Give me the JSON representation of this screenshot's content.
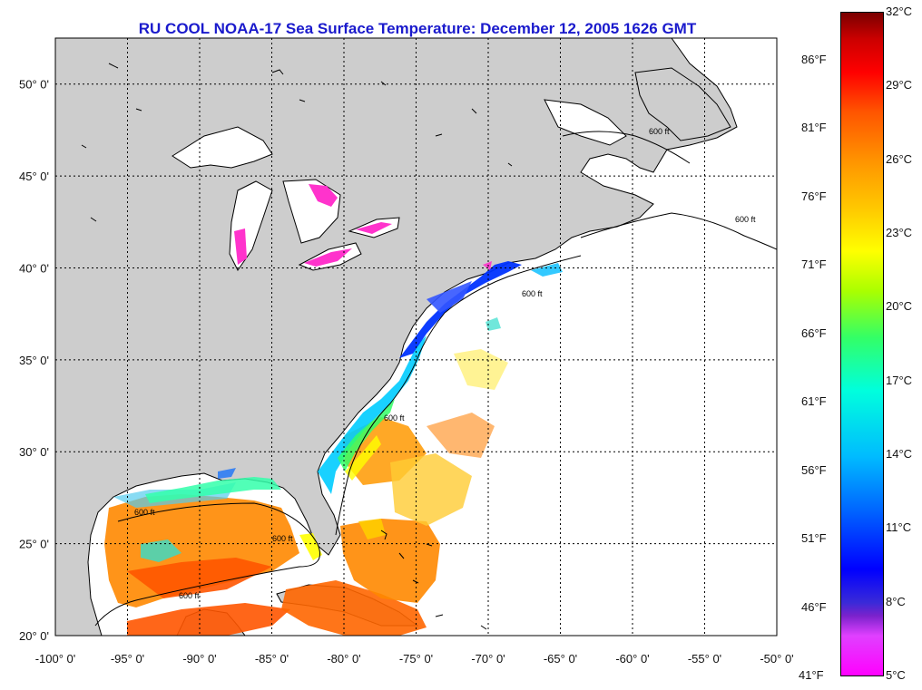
{
  "title": "RU COOL  NOAA-17  Sea Surface Temperature:  December 12, 2005 1626 GMT",
  "map": {
    "lon_range": [
      -100,
      -50
    ],
    "lat_range": [
      20,
      52.5
    ],
    "grid": true,
    "lon_ticks": [
      "-100° 0'",
      "-95° 0'",
      "-90° 0'",
      "-85° 0'",
      "-80° 0'",
      "-75° 0'",
      "-70° 0'",
      "-65° 0'",
      "-60° 0'",
      "-55° 0'",
      "-50° 0'"
    ],
    "lat_ticks": [
      "50° 0'",
      "45° 0'",
      "40° 0'",
      "35° 0'",
      "30° 0'",
      "25° 0'",
      "20° 0'"
    ],
    "contour_label": "600 ft",
    "land_color": "#cdcdcd",
    "ocean_no_data_color": "#ffffff"
  },
  "colorbar": {
    "fahrenheit": [
      "86°F",
      "81°F",
      "76°F",
      "71°F",
      "66°F",
      "61°F",
      "56°F",
      "51°F",
      "46°F",
      "41°F"
    ],
    "celsius": [
      "32°C",
      "29°C",
      "26°C",
      "23°C",
      "20°C",
      "17°C",
      "14°C",
      "11°C",
      "8°C",
      "5°C"
    ],
    "min_c": 5,
    "max_c": 32
  }
}
